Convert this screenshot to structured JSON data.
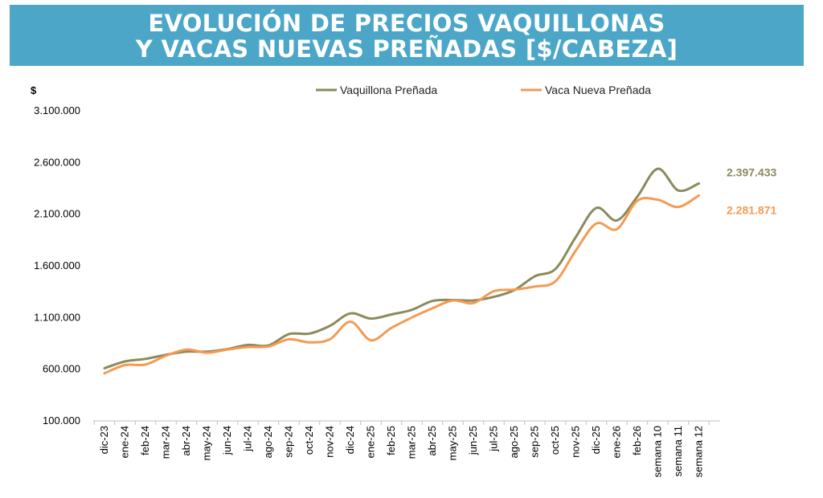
{
  "header": {
    "title_line1": "EVOLUCIÓN DE PRECIOS VAQUILLONAS",
    "title_line2": "Y VACAS NUEVAS PREÑADAS [$/CABEZA]"
  },
  "chart_data": {
    "type": "line",
    "ylabel": "$",
    "ylim": [
      100000,
      3100000
    ],
    "yticks": [
      100000,
      600000,
      1100000,
      1600000,
      2100000,
      2600000,
      3100000
    ],
    "ytick_labels": [
      "100.000",
      "600.000",
      "1.100.000",
      "1.600.000",
      "2.100.000",
      "2.600.000",
      "3.100.000"
    ],
    "categories": [
      "dic-23",
      "ene-24",
      "feb-24",
      "mar-24",
      "abr-24",
      "may-24",
      "jun-24",
      "jul-24",
      "ago-24",
      "sep-24",
      "oct-24",
      "nov-24",
      "dic-24",
      "ene-25",
      "feb-25",
      "mar-25",
      "abr-25",
      "may-25",
      "jun-25",
      "jul-25",
      "ago-25",
      "sep-25",
      "oct-25",
      "nov-25",
      "dic-25",
      "ene-26",
      "feb-26",
      "semana 10",
      "semana 11",
      "semana 12"
    ],
    "series": [
      {
        "name": "Vaquillona Preñada",
        "color": "#8b8a5c",
        "values": [
          610000,
          675000,
          700000,
          740000,
          770000,
          770000,
          795000,
          835000,
          830000,
          940000,
          945000,
          1020000,
          1140000,
          1090000,
          1130000,
          1175000,
          1260000,
          1270000,
          1265000,
          1300000,
          1365000,
          1500000,
          1570000,
          1880000,
          2160000,
          2040000,
          2270000,
          2540000,
          2330000,
          2397433
        ],
        "end_label": "2.397.433"
      },
      {
        "name": "Vaca Nueva Preñada",
        "color": "#f59a52",
        "values": [
          560000,
          640000,
          645000,
          730000,
          790000,
          760000,
          790000,
          815000,
          820000,
          890000,
          860000,
          890000,
          1060000,
          880000,
          1000000,
          1100000,
          1190000,
          1265000,
          1240000,
          1355000,
          1370000,
          1400000,
          1450000,
          1750000,
          2010000,
          1955000,
          2230000,
          2240000,
          2170000,
          2281871
        ],
        "end_label": "2.281.871"
      }
    ]
  }
}
